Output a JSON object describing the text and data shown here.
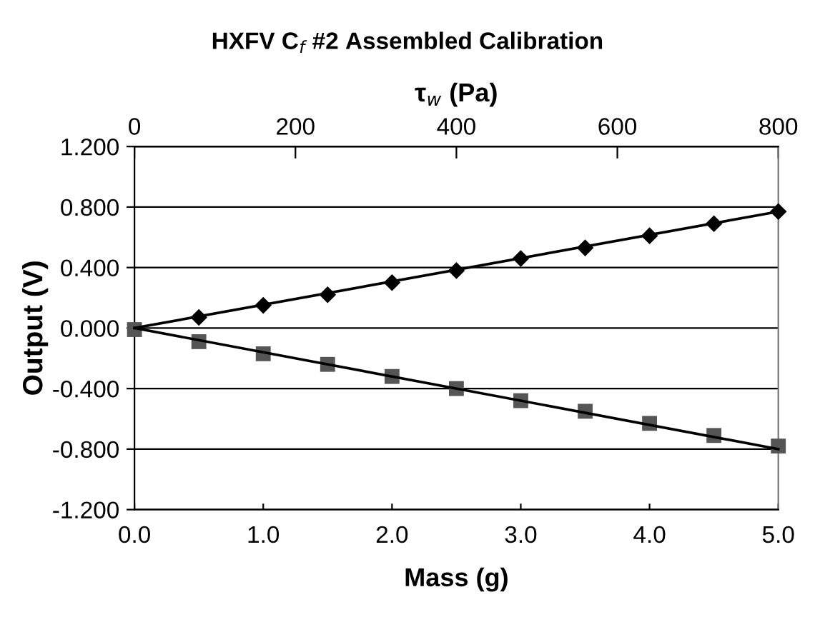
{
  "chart_data": {
    "type": "scatter",
    "title": "HXFV C$_{f}$ #2 Assembled Calibration",
    "xlabel": "Mass (g)",
    "ylabel": "Output (V)",
    "x2label": "τ$_{w}$ (Pa)",
    "x": [
      0,
      0.5,
      1.0,
      1.5,
      2.0,
      2.5,
      3.0,
      3.5,
      4.0,
      4.5,
      5.0
    ],
    "series": [
      {
        "type": "line",
        "values": [
          0,
          null,
          null,
          null,
          null,
          null,
          null,
          null,
          null,
          null,
          0.77
        ],
        "color": "#000000",
        "marker": "none"
      },
      {
        "type": "line",
        "values": [
          0,
          null,
          null,
          null,
          null,
          null,
          null,
          null,
          null,
          null,
          -0.8
        ],
        "color": "#000000",
        "marker": "none"
      },
      {
        "color": "#000000",
        "marker": "diamond",
        "values": [
          null,
          0.07,
          0.15,
          0.22,
          0.3,
          0.38,
          0.46,
          0.53,
          0.61,
          0.69,
          0.77
        ]
      },
      {
        "color": "#555555",
        "marker": "square",
        "values": [
          -0.01,
          -0.09,
          -0.17,
          -0.24,
          -0.32,
          -0.4,
          -0.48,
          -0.55,
          -0.63,
          -0.71,
          -0.78
        ]
      }
    ],
    "xlim": [
      0,
      5
    ],
    "xticks": [
      {
        "value": 0,
        "label": "0.0"
      },
      {
        "value": 1,
        "label": "1.0"
      },
      {
        "value": 2,
        "label": "2.0"
      },
      {
        "value": 3,
        "label": "3.0"
      },
      {
        "value": 4,
        "label": "4.0"
      },
      {
        "value": 5,
        "label": "5.0"
      }
    ],
    "ylim": [
      -1.2,
      1.2
    ],
    "yticks": [
      {
        "value": -1.2,
        "label": "-1.200"
      },
      {
        "value": -0.8,
        "label": "-0.800"
      },
      {
        "value": -0.4,
        "label": "-0.400"
      },
      {
        "value": 0,
        "label": "0.000"
      },
      {
        "value": 0.4,
        "label": "0.400"
      },
      {
        "value": 0.8,
        "label": "0.800"
      },
      {
        "value": 1.2,
        "label": "1.200"
      }
    ],
    "x2lim": [
      0,
      800
    ],
    "x2ticks": [
      0,
      200,
      400,
      600,
      800
    ],
    "grid": "y",
    "legend": false
  }
}
